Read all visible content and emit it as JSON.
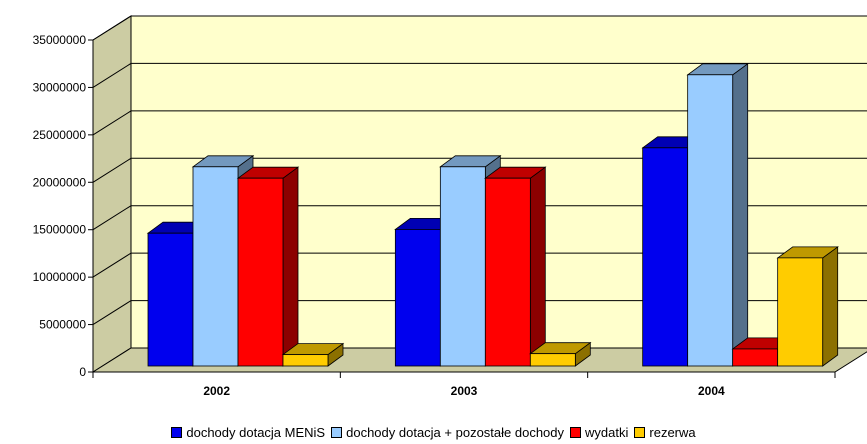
{
  "chart_data": {
    "type": "bar",
    "categories": [
      "2002",
      "2003",
      "2004"
    ],
    "series": [
      {
        "name": "dochody dotacja MENiS",
        "values": [
          14000000,
          14400000,
          23000000
        ],
        "color": "#0000ee"
      },
      {
        "name": "dochody dotacja + pozostałe dochody",
        "values": [
          21000000,
          21000000,
          30700000
        ],
        "color": "#99ccff"
      },
      {
        "name": "wydatki",
        "values": [
          19800000,
          19800000,
          1800000
        ],
        "color": "#ff0000"
      },
      {
        "name": "rezerwa",
        "values": [
          1200000,
          1300000,
          11400000
        ],
        "color": "#ffcc00"
      }
    ],
    "ylim": [
      0,
      35000000
    ],
    "yticks": [
      0,
      5000000,
      10000000,
      15000000,
      20000000,
      25000000,
      30000000,
      35000000
    ],
    "ytick_labels": [
      "0",
      "5000000",
      "10000000",
      "15000000",
      "20000000",
      "25000000",
      "30000000",
      "35000000"
    ],
    "grid": true,
    "style": "3d-column",
    "wall_color": "#ffffcc",
    "legend_position": "bottom"
  }
}
